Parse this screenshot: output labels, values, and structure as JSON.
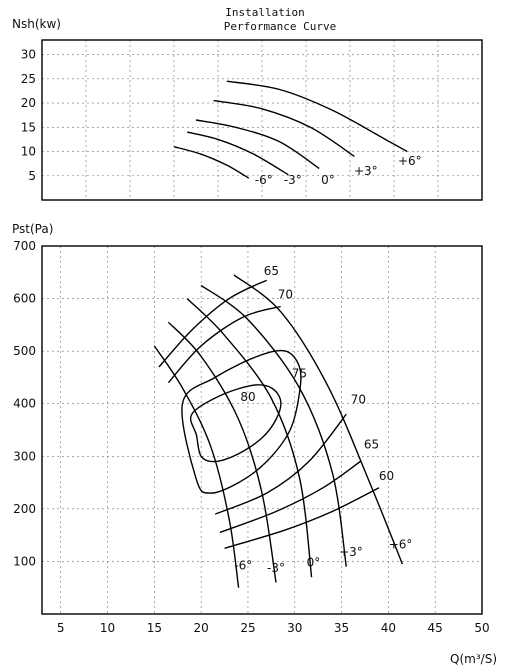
{
  "title_lines": [
    "Installation",
    "Performance Curve"
  ],
  "chart_data": [
    {
      "id": "power",
      "type": "line",
      "ylabel": "Nsh(kw)",
      "xlim": [
        0,
        50
      ],
      "ylim": [
        0,
        33
      ],
      "yticks": [
        5,
        10,
        15,
        20,
        25,
        30
      ],
      "xgrid": [
        5,
        10,
        15,
        20,
        25,
        30,
        35,
        40,
        45
      ],
      "grid": true,
      "series": [
        {
          "name": "-6°",
          "label_at": [
            25.2,
            3.3
          ],
          "points": [
            [
              15,
              11
            ],
            [
              18,
              9.5
            ],
            [
              21,
              7.2
            ],
            [
              23.5,
              4.5
            ]
          ]
        },
        {
          "name": "-3°",
          "label_at": [
            28.5,
            3.3
          ],
          "points": [
            [
              16.5,
              14
            ],
            [
              20,
              12.5
            ],
            [
              24,
              9.5
            ],
            [
              28,
              5.2
            ]
          ]
        },
        {
          "name": "0°",
          "label_at": [
            32.5,
            3.3
          ],
          "points": [
            [
              17.5,
              16.5
            ],
            [
              22,
              15
            ],
            [
              27,
              12
            ],
            [
              31.5,
              6.5
            ]
          ]
        },
        {
          "name": "+3°",
          "label_at": [
            36.8,
            5.2
          ],
          "points": [
            [
              19.5,
              20.5
            ],
            [
              25,
              18.8
            ],
            [
              30.5,
              15
            ],
            [
              35.5,
              9
            ]
          ]
        },
        {
          "name": "+6°",
          "label_at": [
            41.8,
            7.2
          ],
          "points": [
            [
              21,
              24.5
            ],
            [
              27,
              22.8
            ],
            [
              33,
              18.5
            ],
            [
              39.5,
              12
            ],
            [
              41.5,
              10
            ]
          ]
        }
      ]
    },
    {
      "id": "pressure",
      "type": "line",
      "ylabel": "Pst(Pa)",
      "xlabel": "Q(m³/S)",
      "xlim": [
        3,
        50
      ],
      "ylim": [
        0,
        700
      ],
      "xticks": [
        5,
        10,
        15,
        20,
        25,
        30,
        35,
        40,
        45,
        50
      ],
      "yticks": [
        100,
        200,
        300,
        400,
        500,
        600,
        700
      ],
      "grid": true,
      "series": [
        {
          "name": "-6°",
          "label_at": [
            24.5,
            85
          ],
          "points": [
            [
              15,
              510
            ],
            [
              18,
              430
            ],
            [
              21,
              320
            ],
            [
              23,
              180
            ],
            [
              24,
              50
            ]
          ]
        },
        {
          "name": "-3°",
          "label_at": [
            28,
            80
          ],
          "points": [
            [
              16.5,
              555
            ],
            [
              20,
              490
            ],
            [
              24,
              370
            ],
            [
              26.5,
              230
            ],
            [
              28,
              60
            ]
          ]
        },
        {
          "name": "0°",
          "label_at": [
            32,
            90
          ],
          "points": [
            [
              18.5,
              600
            ],
            [
              22.5,
              530
            ],
            [
              27.5,
              410
            ],
            [
              30.5,
              260
            ],
            [
              31.8,
              70
            ]
          ]
        },
        {
          "name": "+3°",
          "label_at": [
            36,
            110
          ],
          "points": [
            [
              20,
              625
            ],
            [
              25,
              560
            ],
            [
              30.5,
              430
            ],
            [
              34,
              270
            ],
            [
              35.5,
              90
            ]
          ]
        },
        {
          "name": "+6°",
          "label_at": [
            41.3,
            125
          ],
          "points": [
            [
              23.5,
              645
            ],
            [
              28.5,
              575
            ],
            [
              33.5,
              435
            ],
            [
              38,
              250
            ],
            [
              41.5,
              95
            ]
          ]
        },
        {
          "name": "60",
          "label_at": [
            39.8,
            255
          ],
          "points": [
            [
              22.5,
              125
            ],
            [
              29,
              160
            ],
            [
              34,
              195
            ],
            [
              39,
              240
            ]
          ]
        },
        {
          "name": "65",
          "label_at": [
            38.2,
            315
          ],
          "points": [
            [
              22,
              155
            ],
            [
              28,
              195
            ],
            [
              33,
              240
            ],
            [
              37,
              290
            ]
          ]
        },
        {
          "name": "70",
          "label_at": [
            36.8,
            400
          ],
          "points": [
            [
              21.5,
              190
            ],
            [
              27,
              230
            ],
            [
              31.5,
              290
            ],
            [
              35.5,
              380
            ]
          ]
        },
        {
          "name": "65",
          "label_at": [
            27.5,
            645
          ],
          "points": [
            [
              15.5,
              470
            ],
            [
              19,
              540
            ],
            [
              23,
              600
            ],
            [
              27,
              635
            ]
          ]
        },
        {
          "name": "70",
          "label_at": [
            29,
            600
          ],
          "points": [
            [
              16.5,
              440
            ],
            [
              20,
              510
            ],
            [
              24.5,
              565
            ],
            [
              28.5,
              585
            ]
          ]
        },
        {
          "name": "75",
          "label_at": [
            30.5,
            450
          ],
          "closed": true,
          "points": [
            [
              18,
              400
            ],
            [
              21.5,
              450
            ],
            [
              26,
              490
            ],
            [
              29,
              500
            ],
            [
              30.5,
              470
            ],
            [
              30.5,
              420
            ],
            [
              29.5,
              350
            ],
            [
              27,
              290
            ],
            [
              24,
              250
            ],
            [
              21,
              230
            ],
            [
              19.5,
              255
            ]
          ]
        },
        {
          "name": "80",
          "label_at": [
            25,
            405
          ],
          "closed": true,
          "points": [
            [
              19,
              380
            ],
            [
              22,
              415
            ],
            [
              25.5,
              435
            ],
            [
              27.5,
              430
            ],
            [
              28.5,
              405
            ],
            [
              28,
              370
            ],
            [
              26.5,
              335
            ],
            [
              24,
              305
            ],
            [
              21.5,
              290
            ],
            [
              20,
              300
            ],
            [
              19.5,
              340
            ]
          ]
        }
      ]
    }
  ]
}
